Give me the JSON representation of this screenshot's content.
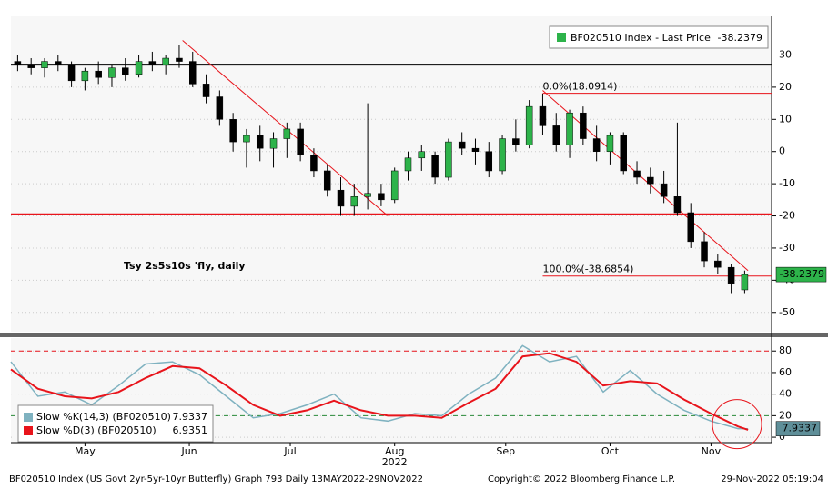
{
  "chart_data": [
    {
      "type": "candlestick",
      "x": [
        116,
        120,
        124,
        128,
        132,
        136,
        140,
        144,
        148,
        152,
        156,
        160,
        164,
        168,
        172,
        176,
        180,
        184,
        188,
        192,
        196,
        200,
        204,
        208,
        212,
        216,
        220,
        224,
        228,
        232,
        236,
        240,
        244,
        248,
        252,
        256,
        260,
        264,
        268,
        272,
        276,
        280,
        284,
        288,
        292,
        296,
        300,
        304,
        308,
        312,
        316,
        320,
        324,
        328,
        332
      ],
      "xlim": [
        114,
        340
      ],
      "series": [
        {
          "name": "BF020510 Index - Last Price",
          "up_color": "#2db34a",
          "down_color": "#000000",
          "open": [
            28,
            27,
            26,
            28,
            27,
            22,
            25,
            23,
            26,
            24,
            28,
            27,
            29,
            28,
            21,
            17,
            10,
            3,
            5,
            1,
            4,
            7,
            -1,
            -6,
            -12,
            -17,
            -14,
            -13,
            -15,
            -6,
            -2,
            -1,
            -8,
            3,
            1,
            0,
            -6,
            4,
            2,
            14,
            8,
            2,
            12,
            4,
            0,
            5,
            -6,
            -8,
            -10,
            -14,
            -19,
            -28,
            -34,
            -36,
            -43
          ],
          "high": [
            30,
            29,
            29,
            30,
            28,
            26,
            28,
            27,
            29,
            30,
            31,
            30,
            33,
            31,
            24,
            19,
            12,
            7,
            8,
            6,
            9,
            9,
            1,
            -4,
            -8,
            -10,
            15,
            -10,
            -5,
            0,
            2,
            0,
            4,
            6,
            4,
            3,
            5,
            10,
            16,
            18,
            12,
            13,
            14,
            8,
            6,
            6,
            -3,
            -5,
            -6,
            9,
            -16,
            -25,
            -32,
            -35,
            -37
          ],
          "low": [
            25,
            24,
            23,
            25,
            20,
            19,
            21,
            20,
            22,
            23,
            25,
            24,
            26,
            20,
            15,
            8,
            0,
            -5,
            -3,
            -5,
            -2,
            -3,
            -8,
            -14,
            -20,
            -20,
            -18,
            -17,
            -16,
            -9,
            -6,
            -10,
            -9,
            -1,
            -4,
            -8,
            -7,
            0,
            1,
            5,
            0,
            -2,
            2,
            -3,
            -4,
            -7,
            -10,
            -13,
            -16,
            -20,
            -30,
            -36,
            -38,
            -44,
            -44
          ],
          "close": [
            27,
            26,
            28,
            27,
            22,
            25,
            23,
            26,
            24,
            28,
            27,
            29,
            28,
            21,
            17,
            10,
            3,
            5,
            1,
            4,
            7,
            -1,
            -6,
            -12,
            -17,
            -14,
            -13,
            -15,
            -6,
            -2,
            0,
            -8,
            3,
            1,
            0,
            -6,
            4,
            2,
            14,
            8,
            2,
            12,
            4,
            0,
            5,
            -6,
            -8,
            -10,
            -14,
            -19,
            -28,
            -34,
            -36,
            -41,
            -38.2379
          ]
        }
      ],
      "ylim": [
        -56,
        42
      ],
      "yticks": [
        30,
        20,
        10,
        0,
        -10,
        -20,
        -30,
        -40,
        -50
      ],
      "grid": true,
      "hlines": [
        {
          "value": 27,
          "color": "#000000"
        },
        {
          "value": -19.5,
          "color": "#e8141b"
        }
      ],
      "trend_lines": [
        [
          [
            165,
            34.5
          ],
          [
            226,
            -20
          ]
        ],
        [
          [
            272,
            19
          ],
          [
            333,
            -37
          ]
        ]
      ],
      "fib_levels": [
        {
          "value": 18.0914,
          "label": "0.0%(18.0914)",
          "start": 272
        },
        {
          "value": -38.6854,
          "label": "100.0%(-38.6854)",
          "start": 272
        }
      ],
      "annotation": "Tsy 2s5s10s 'fly, daily"
    },
    {
      "type": "line",
      "x": [
        114,
        122,
        130,
        138,
        146,
        154,
        162,
        170,
        178,
        186,
        194,
        202,
        210,
        218,
        226,
        234,
        242,
        250,
        258,
        266,
        274,
        282,
        290,
        298,
        306,
        314,
        322,
        330,
        333
      ],
      "xlim": [
        114,
        340
      ],
      "series": [
        {
          "name": "Slow %K(14,3) (BF020510)",
          "color": "#7fb2c0",
          "values": [
            70,
            38,
            42,
            30,
            48,
            68,
            70,
            58,
            38,
            18,
            22,
            30,
            40,
            18,
            15,
            22,
            20,
            40,
            55,
            85,
            70,
            75,
            42,
            62,
            40,
            25,
            15,
            8,
            7.9337
          ]
        },
        {
          "name": "Slow %D(3) (BF020510)",
          "color": "#e8141b",
          "values": [
            63,
            45,
            38,
            36,
            42,
            55,
            66,
            64,
            48,
            30,
            20,
            25,
            34,
            25,
            20,
            20,
            18,
            32,
            45,
            75,
            78,
            70,
            48,
            52,
            50,
            35,
            22,
            10,
            6.9351
          ]
        }
      ],
      "ylim": [
        -5,
        92
      ],
      "yticks": [
        0,
        20,
        40,
        60,
        80
      ],
      "grid": true,
      "levels": [
        {
          "value": 80,
          "color": "#e8141b"
        },
        {
          "value": 20,
          "color": "#2a8a3a"
        }
      ],
      "xticks": [
        {
          "value": 136,
          "label": "May"
        },
        {
          "value": 167,
          "label": "Jun"
        },
        {
          "value": 197,
          "label": "Jul"
        },
        {
          "value": 228,
          "label": "Aug"
        },
        {
          "value": 261,
          "label": "Sep"
        },
        {
          "value": 292,
          "label": "Oct"
        },
        {
          "value": 322,
          "label": "Nov"
        }
      ],
      "year_label": "2022",
      "year_at": 228
    }
  ],
  "footer": {
    "left": "BF020510 Index (US Govt 2yr-5yr-10yr Butterfly) Graph 793  Daily 13MAY2022-29NOV2022",
    "middle": "Copyright© 2022 Bloomberg Finance L.P.",
    "right": "29-Nov-2022 05:19:04"
  }
}
